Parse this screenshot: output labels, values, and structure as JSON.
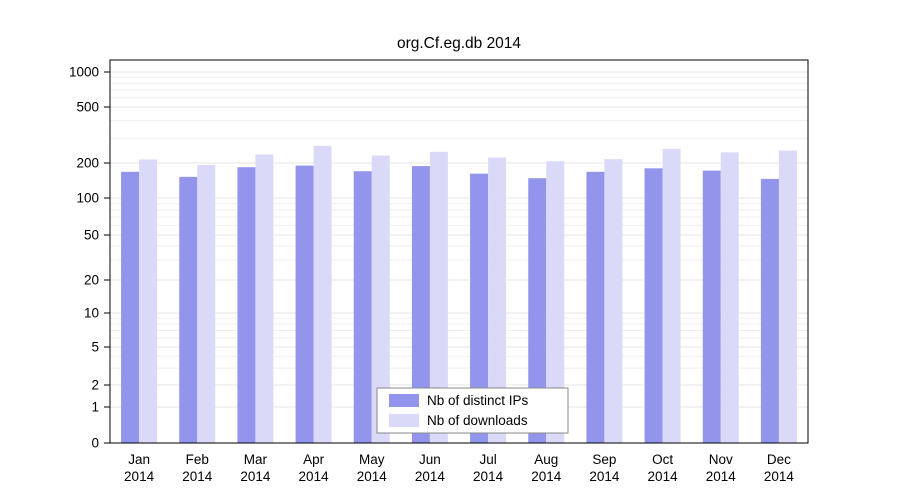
{
  "title": "org.Cf.eg.db 2014",
  "chart_data": {
    "type": "bar",
    "title": "org.Cf.eg.db 2014",
    "xlabel": "",
    "ylabel": "",
    "scale": "log-like",
    "grid": true,
    "legend_position": "bottom-center",
    "categories": [
      "Jan",
      "Feb",
      "Mar",
      "Apr",
      "May",
      "Jun",
      "Jul",
      "Aug",
      "Sep",
      "Oct",
      "Nov",
      "Dec"
    ],
    "year_label": "2014",
    "yticks": [
      0,
      1,
      2,
      5,
      10,
      20,
      50,
      100,
      200,
      500,
      1000
    ],
    "minor_gridlines": [
      3,
      4,
      6,
      7,
      8,
      9,
      30,
      40,
      60,
      70,
      80,
      90,
      300,
      400,
      600,
      700,
      800,
      900
    ],
    "series": [
      {
        "name": "Nb of distinct IPs",
        "color": "#9394ec",
        "values": [
          168,
          152,
          184,
          190,
          170,
          188,
          162,
          148,
          168,
          180,
          172,
          146
        ]
      },
      {
        "name": "Nb of downloads",
        "color": "#dadaf8",
        "values": [
          212,
          192,
          230,
          265,
          226,
          240,
          219,
          206,
          213,
          252,
          238,
          245
        ]
      }
    ],
    "colors": {
      "plot_border": "#000000",
      "grid_minor": "#efefef",
      "grid_major": "#e4e4e4",
      "legend_border": "#888888",
      "legend_bg": "#ffffff"
    }
  }
}
